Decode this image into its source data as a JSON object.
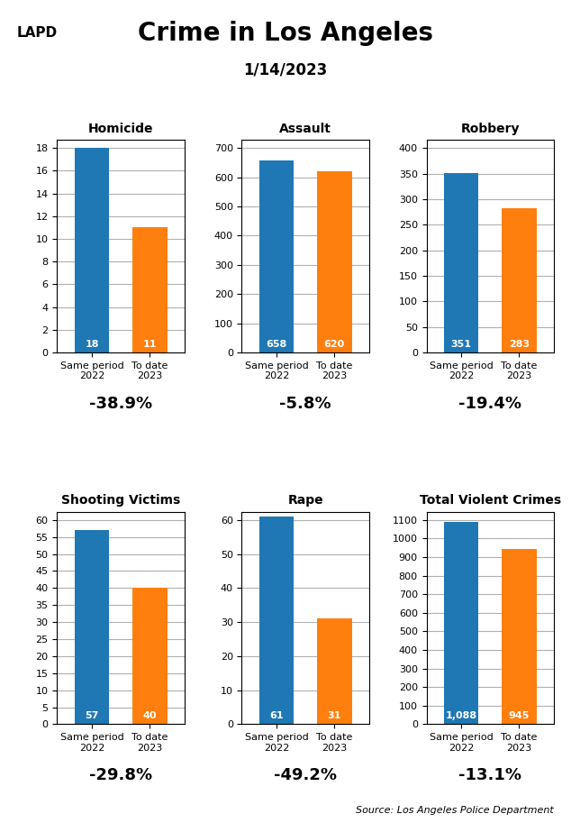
{
  "title": "Crime in Los Angeles",
  "subtitle": "1/14/2023",
  "annotations": [
    "LAPD",
    "Source: Los Angeles Police Department"
  ],
  "chart_data": [
    {
      "type": "bar",
      "title": "Homicide",
      "categories": [
        "Same period 2022",
        "To date 2023"
      ],
      "values": [
        18,
        11
      ],
      "ylim": [
        0,
        18.72
      ],
      "yticks": [
        0,
        2,
        4,
        6,
        8,
        10,
        12,
        14,
        16,
        18
      ],
      "grid": true,
      "data_labels": true,
      "annotation": "-38.9%"
    },
    {
      "type": "bar",
      "title": "Assault",
      "categories": [
        "Same period 2022",
        "To date 2023"
      ],
      "values": [
        658,
        620
      ],
      "ylim": [
        0,
        728
      ],
      "yticks": [
        0,
        100,
        200,
        300,
        400,
        500,
        600,
        700
      ],
      "grid": true,
      "data_labels": true,
      "annotation": "-5.8%"
    },
    {
      "type": "bar",
      "title": "Robbery",
      "categories": [
        "Same period 2022",
        "To date 2023"
      ],
      "values": [
        351,
        283
      ],
      "ylim": [
        0,
        416
      ],
      "yticks": [
        0,
        50,
        100,
        150,
        200,
        250,
        300,
        350,
        400
      ],
      "grid": true,
      "data_labels": true,
      "annotation": "-19.4%"
    },
    {
      "type": "bar",
      "title": "Shooting Victims",
      "categories": [
        "Same period 2022",
        "To date 2023"
      ],
      "values": [
        57,
        40
      ],
      "ylim": [
        0,
        62.4
      ],
      "yticks": [
        0,
        5,
        10,
        15,
        20,
        25,
        30,
        35,
        40,
        45,
        50,
        55,
        60
      ],
      "grid": true,
      "data_labels": true,
      "annotation": "-29.8%"
    },
    {
      "type": "bar",
      "title": "Rape",
      "categories": [
        "Same period 2022",
        "To date 2023"
      ],
      "values": [
        61,
        31
      ],
      "ylim": [
        0,
        62.4
      ],
      "yticks": [
        0,
        10,
        20,
        30,
        40,
        50,
        60
      ],
      "grid": true,
      "data_labels": true,
      "annotation": "-49.2%"
    },
    {
      "type": "bar",
      "title": "Total Violent Crimes",
      "categories": [
        "Same period 2022",
        "To date 2023"
      ],
      "values": [
        1088,
        945
      ],
      "value_labels": [
        "1,088",
        "945"
      ],
      "ylim": [
        0,
        1144
      ],
      "yticks": [
        0,
        100,
        200,
        300,
        400,
        500,
        600,
        700,
        800,
        900,
        1000,
        1100
      ],
      "grid": true,
      "data_labels": true,
      "annotation": "-13.1%"
    }
  ]
}
